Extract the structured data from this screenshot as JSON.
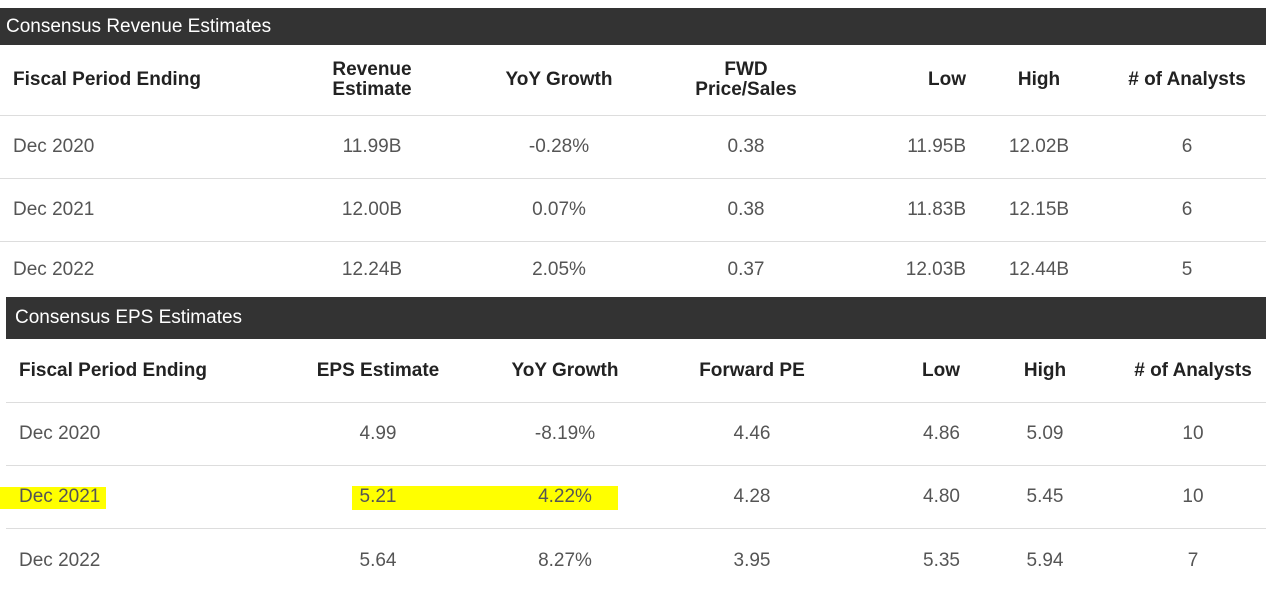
{
  "revenue": {
    "title": "Consensus Revenue Estimates",
    "headers": [
      {
        "line1": "Fiscal Period Ending",
        "line2": ""
      },
      {
        "line1": "Revenue",
        "line2": "Estimate"
      },
      {
        "line1": "YoY Growth",
        "line2": ""
      },
      {
        "line1": "FWD",
        "line2": "Price/Sales"
      },
      {
        "line1": "Low",
        "line2": ""
      },
      {
        "line1": "High",
        "line2": ""
      },
      {
        "line1": "# of Analysts",
        "line2": ""
      }
    ],
    "rows": [
      [
        "Dec 2020",
        "11.99B",
        "-0.28%",
        "0.38",
        "11.95B",
        "12.02B",
        "6"
      ],
      [
        "Dec 2021",
        "12.00B",
        "0.07%",
        "0.38",
        "11.83B",
        "12.15B",
        "6"
      ],
      [
        "Dec 2022",
        "12.24B",
        "2.05%",
        "0.37",
        "12.03B",
        "12.44B",
        "5"
      ]
    ]
  },
  "eps": {
    "title": "Consensus EPS Estimates",
    "headers": [
      "Fiscal Period Ending",
      "EPS Estimate",
      "YoY Growth",
      "Forward PE",
      "Low",
      "High",
      "# of Analysts"
    ],
    "rows": [
      [
        "Dec 2020",
        "4.99",
        "-8.19%",
        "4.46",
        "4.86",
        "5.09",
        "10"
      ],
      [
        "Dec 2021",
        "5.21",
        "4.22%",
        "4.28",
        "4.80",
        "5.45",
        "10"
      ],
      [
        "Dec 2022",
        "5.64",
        "8.27%",
        "3.95",
        "5.35",
        "5.94",
        "7"
      ]
    ]
  },
  "highlight_color": "#ffff00"
}
